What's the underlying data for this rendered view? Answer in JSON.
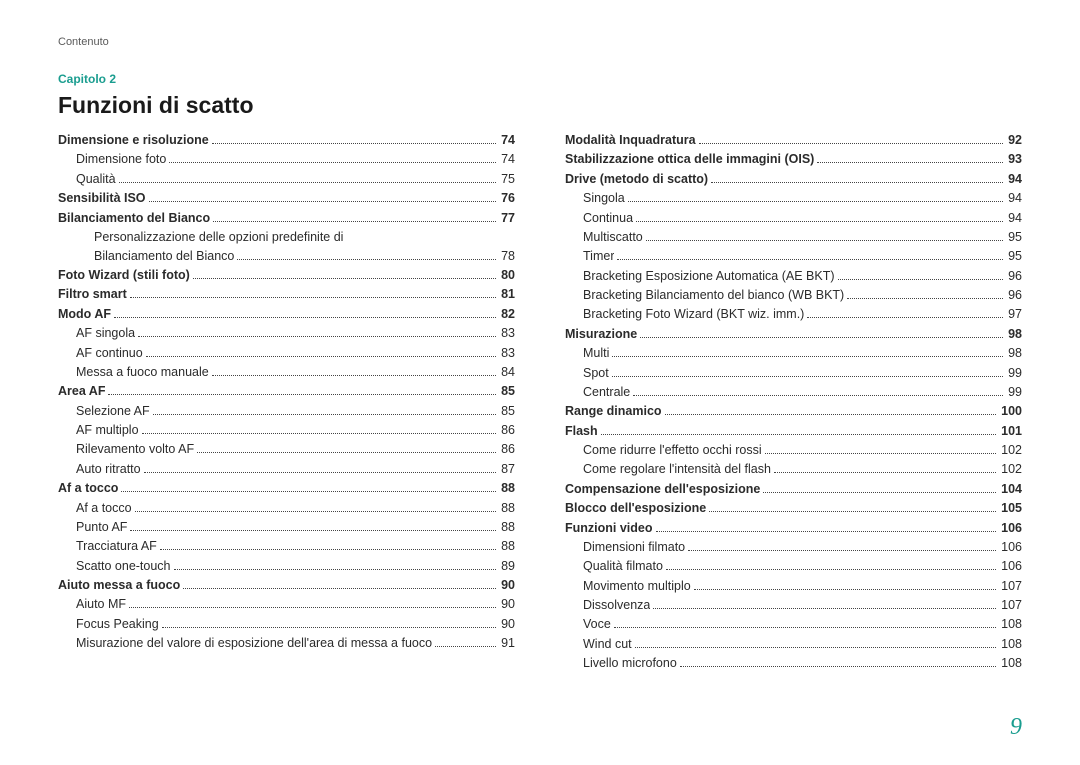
{
  "header_small": "Contenuto",
  "chapter_label": "Capitolo 2",
  "chapter_title": "Funzioni di scatto",
  "page_number": "9",
  "columns": [
    {
      "items": [
        {
          "level": 0,
          "text": "Dimensione e risoluzione",
          "page": "74"
        },
        {
          "level": 1,
          "text": "Dimensione foto",
          "page": "74"
        },
        {
          "level": 1,
          "text": "Qualità",
          "page": "75"
        },
        {
          "level": 0,
          "text": "Sensibilità ISO",
          "page": "76"
        },
        {
          "level": 0,
          "text": "Bilanciamento del Bianco",
          "page": "77"
        },
        {
          "level": 2,
          "multiline": true,
          "lines": [
            "Personalizzazione delle opzioni predefinite di",
            "Bilanciamento del Bianco"
          ],
          "page": "78"
        },
        {
          "level": 0,
          "text": "Foto Wizard (stili foto)",
          "page": "80"
        },
        {
          "level": 0,
          "text": "Filtro smart",
          "page": "81"
        },
        {
          "level": 0,
          "text": "Modo AF",
          "page": "82"
        },
        {
          "level": 1,
          "text": "AF singola",
          "page": "83"
        },
        {
          "level": 1,
          "text": "AF continuo",
          "page": "83"
        },
        {
          "level": 1,
          "text": "Messa a fuoco manuale",
          "page": "84"
        },
        {
          "level": 0,
          "text": "Area AF",
          "page": "85"
        },
        {
          "level": 1,
          "text": "Selezione AF",
          "page": "85"
        },
        {
          "level": 1,
          "text": "AF multiplo",
          "page": "86"
        },
        {
          "level": 1,
          "text": "Rilevamento volto AF",
          "page": "86"
        },
        {
          "level": 1,
          "text": "Auto ritratto",
          "page": "87"
        },
        {
          "level": 0,
          "text": "Af a tocco",
          "page": "88"
        },
        {
          "level": 1,
          "text": "Af a tocco",
          "page": "88"
        },
        {
          "level": 1,
          "text": "Punto AF",
          "page": "88"
        },
        {
          "level": 1,
          "text": "Tracciatura AF",
          "page": "88"
        },
        {
          "level": 1,
          "text": "Scatto one-touch",
          "page": "89"
        },
        {
          "level": 0,
          "text": "Aiuto messa a fuoco",
          "page": "90"
        },
        {
          "level": 1,
          "text": "Aiuto MF",
          "page": "90"
        },
        {
          "level": 1,
          "text": "Focus Peaking",
          "page": "90"
        },
        {
          "level": 1,
          "text": "Misurazione del valore di esposizione dell'area di messa a fuoco",
          "page": "91"
        }
      ]
    },
    {
      "items": [
        {
          "level": 0,
          "text": "Modalità Inquadratura",
          "page": "92"
        },
        {
          "level": 0,
          "text": "Stabilizzazione ottica delle immagini (OIS)",
          "page": "93"
        },
        {
          "level": 0,
          "text": "Drive (metodo di scatto)",
          "page": "94"
        },
        {
          "level": 1,
          "text": "Singola",
          "page": "94"
        },
        {
          "level": 1,
          "text": "Continua",
          "page": "94"
        },
        {
          "level": 1,
          "text": "Multiscatto",
          "page": "95"
        },
        {
          "level": 1,
          "text": "Timer",
          "page": "95"
        },
        {
          "level": 1,
          "text": "Bracketing Esposizione Automatica (AE BKT)",
          "page": "96"
        },
        {
          "level": 1,
          "text": "Bracketing Bilanciamento del bianco (WB BKT)",
          "page": "96"
        },
        {
          "level": 1,
          "text": "Bracketing Foto Wizard (BKT wiz. imm.)",
          "page": "97"
        },
        {
          "level": 0,
          "text": "Misurazione",
          "page": "98"
        },
        {
          "level": 1,
          "text": "Multi",
          "page": "98"
        },
        {
          "level": 1,
          "text": "Spot",
          "page": "99"
        },
        {
          "level": 1,
          "text": "Centrale",
          "page": "99"
        },
        {
          "level": 0,
          "text": "Range dinamico",
          "page": "100"
        },
        {
          "level": 0,
          "text": "Flash",
          "page": "101"
        },
        {
          "level": 1,
          "text": "Come ridurre l'effetto occhi rossi",
          "page": "102"
        },
        {
          "level": 1,
          "text": "Come regolare l'intensità del flash",
          "page": "102"
        },
        {
          "level": 0,
          "text": "Compensazione dell'esposizione",
          "page": "104"
        },
        {
          "level": 0,
          "text": "Blocco dell'esposizione",
          "page": "105"
        },
        {
          "level": 0,
          "text": "Funzioni video",
          "page": "106"
        },
        {
          "level": 1,
          "text": "Dimensioni filmato",
          "page": "106"
        },
        {
          "level": 1,
          "text": "Qualità filmato",
          "page": "106"
        },
        {
          "level": 1,
          "text": "Movimento multiplo",
          "page": "107"
        },
        {
          "level": 1,
          "text": "Dissolvenza",
          "page": "107"
        },
        {
          "level": 1,
          "text": "Voce",
          "page": "108"
        },
        {
          "level": 1,
          "text": "Wind cut",
          "page": "108"
        },
        {
          "level": 1,
          "text": "Livello microfono",
          "page": "108"
        }
      ]
    }
  ]
}
